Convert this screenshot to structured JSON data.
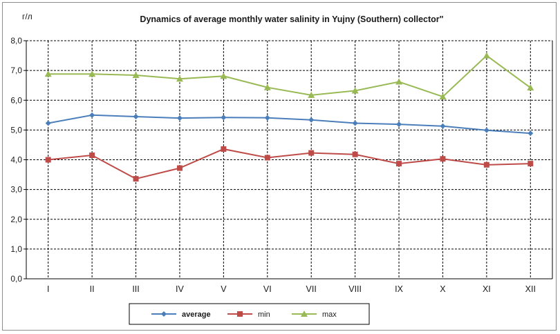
{
  "chart_data": {
    "type": "line",
    "title": "Dynamics of average monthly water salinity in Yujny (Southern) collector\"",
    "unit_label": "г/л",
    "categories": [
      "I",
      "II",
      "III",
      "IV",
      "V",
      "VI",
      "VII",
      "VIII",
      "IX",
      "X",
      "XI",
      "XII"
    ],
    "ylim": [
      0,
      8
    ],
    "ytick_values": [
      0,
      1,
      2,
      3,
      4,
      5,
      6,
      7,
      8
    ],
    "ytick_labels": [
      "0,0",
      "1,0",
      "2,0",
      "3,0",
      "4,0",
      "5,0",
      "6,0",
      "7,0",
      "8,0"
    ],
    "grid": true,
    "legend_position": "bottom-center",
    "series": [
      {
        "name": "average",
        "color": "#4a7ebb",
        "marker": "diamond",
        "values": [
          5.23,
          5.5,
          5.45,
          5.4,
          5.42,
          5.41,
          5.34,
          5.23,
          5.19,
          5.13,
          4.99,
          4.89
        ]
      },
      {
        "name": "min",
        "color": "#be4b48",
        "marker": "square",
        "values": [
          4.0,
          4.15,
          3.36,
          3.72,
          4.36,
          4.07,
          4.23,
          4.18,
          3.87,
          4.03,
          3.83,
          3.87
        ]
      },
      {
        "name": "max",
        "color": "#98b954",
        "marker": "triangle",
        "values": [
          6.88,
          6.88,
          6.84,
          6.72,
          6.81,
          6.43,
          6.17,
          6.32,
          6.62,
          6.12,
          7.5,
          6.42
        ]
      }
    ]
  }
}
